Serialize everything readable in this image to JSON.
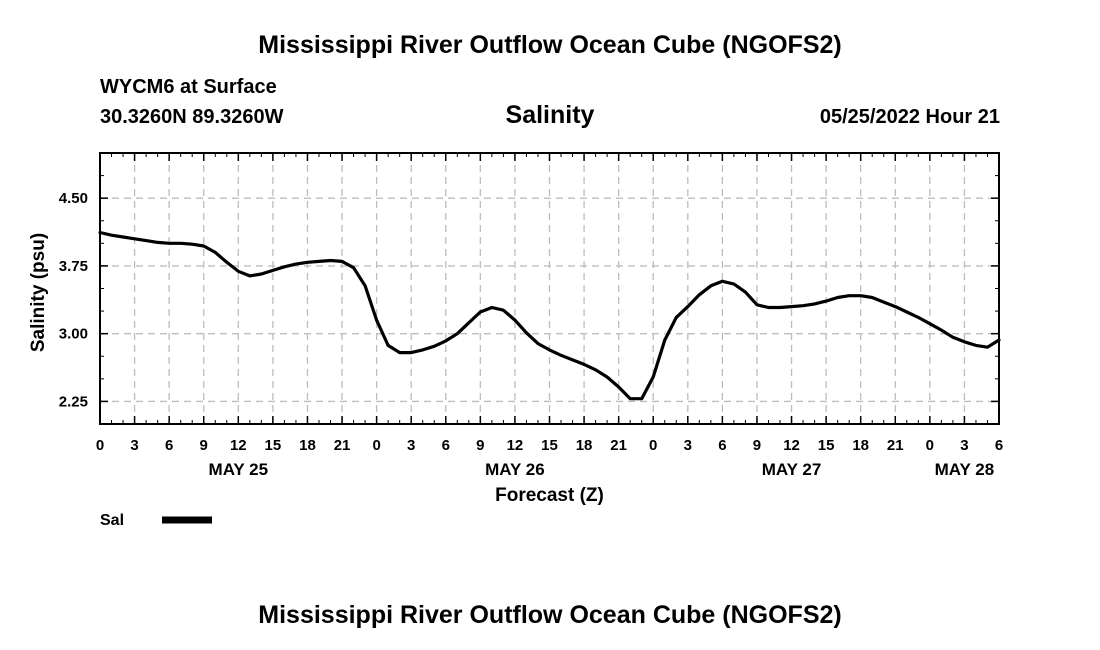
{
  "page": {
    "title_top": "Mississippi River Outflow Ocean Cube (NGOFS2)",
    "title_bottom": "Mississippi River Outflow Ocean Cube (NGOFS2)",
    "station": "WYCM6 at Surface",
    "coords": "30.3260N  89.3260W",
    "datetime": "05/25/2022 Hour 21"
  },
  "chart_data": {
    "type": "line",
    "title": "Salinity",
    "xlabel": "Forecast (Z)",
    "ylabel": "Salinity (psu)",
    "x_unit": "hours from May 25 00Z",
    "xlim": [
      0,
      78
    ],
    "ylim": [
      2.0,
      5.0
    ],
    "yticks": [
      2.25,
      3.0,
      3.75,
      4.5
    ],
    "ytick_labels": [
      "2.25",
      "3.00",
      "3.75",
      "4.50"
    ],
    "xtick_hours": [
      0,
      3,
      6,
      9,
      12,
      15,
      18,
      21,
      24,
      27,
      30,
      33,
      36,
      39,
      42,
      45,
      48,
      51,
      54,
      57,
      60,
      63,
      66,
      69,
      72,
      75,
      78
    ],
    "xtick_labels": [
      "0",
      "3",
      "6",
      "9",
      "12",
      "15",
      "18",
      "21",
      "0",
      "3",
      "6",
      "9",
      "12",
      "15",
      "18",
      "21",
      "0",
      "3",
      "6",
      "9",
      "12",
      "15",
      "18",
      "21",
      "0",
      "3",
      "6"
    ],
    "date_labels": [
      {
        "hour": 12,
        "label": "MAY 25"
      },
      {
        "hour": 36,
        "label": "MAY 26"
      },
      {
        "hour": 60,
        "label": "MAY 27"
      },
      {
        "hour": 75,
        "label": "MAY 28"
      }
    ],
    "grid": true,
    "legend_position": "bottom-left",
    "series": [
      {
        "name": "Sal",
        "x": [
          0,
          1,
          2,
          3,
          4,
          5,
          6,
          7,
          8,
          9,
          10,
          11,
          12,
          13,
          14,
          15,
          16,
          17,
          18,
          19,
          20,
          21,
          22,
          23,
          24,
          25,
          26,
          27,
          28,
          29,
          30,
          31,
          32,
          33,
          34,
          35,
          36,
          37,
          38,
          39,
          40,
          41,
          42,
          43,
          44,
          45,
          46,
          47,
          48,
          49,
          50,
          51,
          52,
          53,
          54,
          55,
          56,
          57,
          58,
          59,
          60,
          61,
          62,
          63,
          64,
          65,
          66,
          67,
          68,
          69,
          70,
          71,
          72,
          73,
          74,
          75,
          76,
          77,
          78
        ],
        "values": [
          4.12,
          4.09,
          4.07,
          4.05,
          4.03,
          4.01,
          4.0,
          4.0,
          3.99,
          3.97,
          3.9,
          3.79,
          3.69,
          3.64,
          3.66,
          3.7,
          3.74,
          3.77,
          3.79,
          3.8,
          3.81,
          3.8,
          3.73,
          3.53,
          3.15,
          2.87,
          2.79,
          2.79,
          2.82,
          2.86,
          2.92,
          3.0,
          3.12,
          3.24,
          3.29,
          3.26,
          3.15,
          3.01,
          2.89,
          2.82,
          2.76,
          2.71,
          2.66,
          2.6,
          2.52,
          2.41,
          2.28,
          2.28,
          2.52,
          2.93,
          3.18,
          3.3,
          3.43,
          3.53,
          3.58,
          3.55,
          3.46,
          3.32,
          3.29,
          3.29,
          3.3,
          3.31,
          3.33,
          3.36,
          3.4,
          3.42,
          3.42,
          3.4,
          3.35,
          3.3,
          3.24,
          3.18,
          3.11,
          3.04,
          2.96,
          2.91,
          2.87,
          2.85,
          2.93
        ]
      }
    ]
  }
}
